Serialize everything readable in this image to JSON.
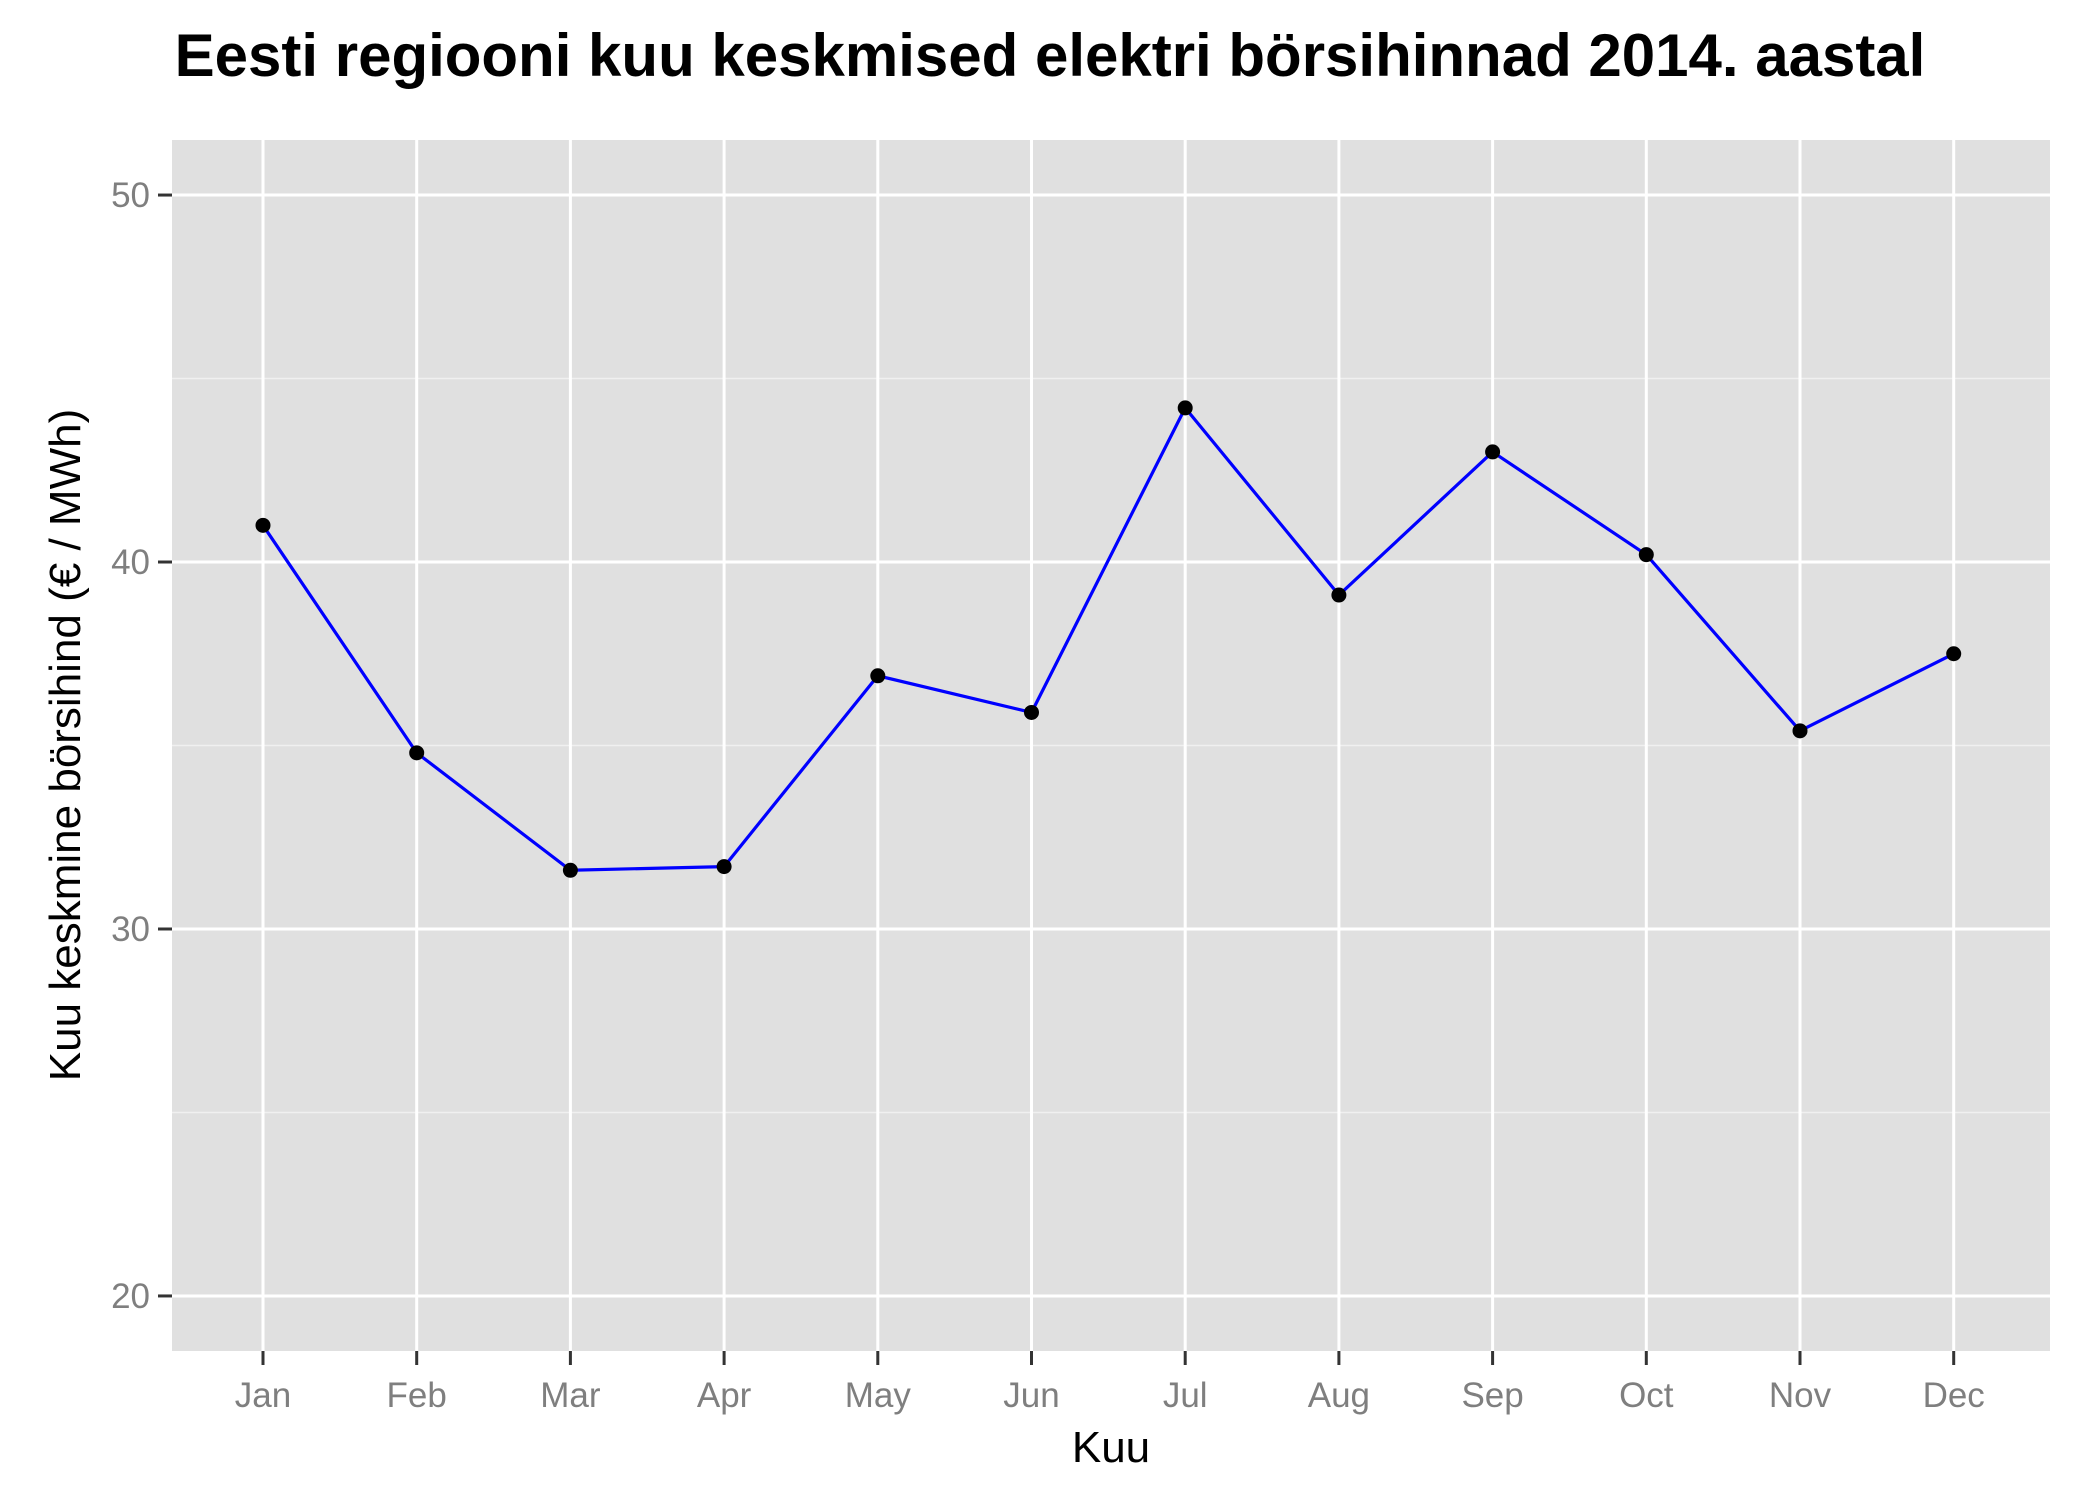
{
  "chart_data": {
    "type": "line",
    "title": "Eesti regiooni kuu keskmised elektri börsihinnad 2014. aastal",
    "xlabel": "Kuu",
    "ylabel": "Kuu keskmine börsihind (€ / MWh)",
    "categories": [
      "Jan",
      "Feb",
      "Mar",
      "Apr",
      "May",
      "Jun",
      "Jul",
      "Aug",
      "Sep",
      "Oct",
      "Nov",
      "Dec"
    ],
    "values": [
      41.0,
      34.8,
      31.6,
      31.7,
      36.9,
      35.9,
      44.2,
      39.1,
      43.0,
      40.2,
      35.4,
      37.5
    ],
    "ylim": [
      18.5,
      51.5
    ],
    "yticks": [
      20,
      30,
      40,
      50
    ],
    "grid": true,
    "legend": "none",
    "colors": {
      "panel_background": "#e0e0e0",
      "grid_major": "#ffffff",
      "grid_minor": "#f0f0f0",
      "line": "#0000ff",
      "point": "#000000",
      "tick_text": "#7f7f7f"
    }
  }
}
